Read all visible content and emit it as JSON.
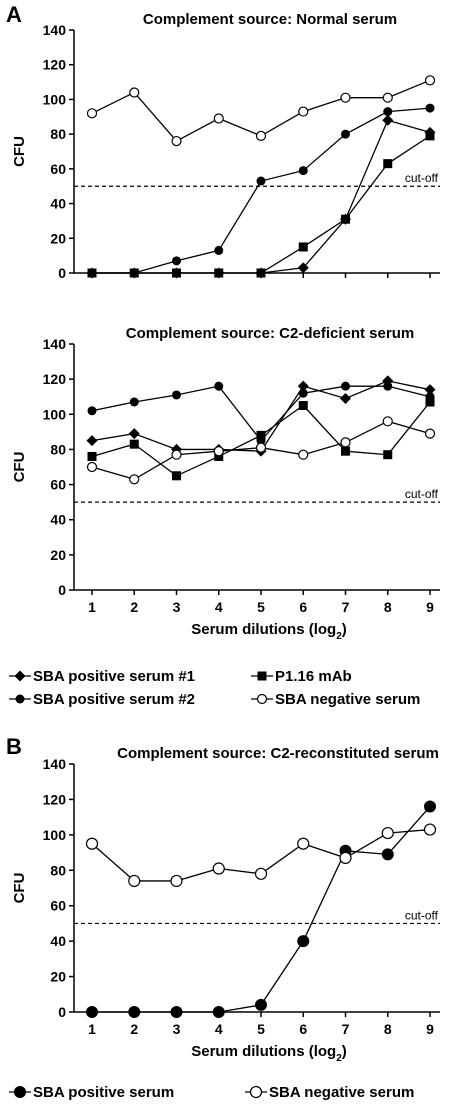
{
  "figure": {
    "panel_labels": [
      "A",
      "B"
    ],
    "legend_A": [
      {
        "label": "SBA positive serum #1",
        "marker": "diamond"
      },
      {
        "label": "P1.16 mAb",
        "marker": "square"
      },
      {
        "label": "SBA positive serum #2",
        "marker": "circle-filled"
      },
      {
        "label": "SBA negative serum",
        "marker": "circle-open"
      }
    ],
    "legend_B": [
      {
        "label": "SBA positive serum",
        "marker": "circle-filled"
      },
      {
        "label": "SBA negative serum",
        "marker": "circle-open"
      }
    ]
  },
  "chart_data": [
    {
      "type": "line",
      "title": "Complement source: Normal serum",
      "ylabel": "CFU",
      "xlabel": "",
      "ylim": [
        0,
        140
      ],
      "yticks": [
        0,
        20,
        40,
        60,
        80,
        100,
        120,
        140
      ],
      "x": [
        1,
        2,
        3,
        4,
        5,
        6,
        7,
        8,
        9
      ],
      "cutoff": {
        "value": 50,
        "label": "cut-off"
      },
      "series": [
        {
          "name": "SBA positive serum #1",
          "marker": "diamond",
          "values": [
            0,
            0,
            0,
            0,
            0,
            3,
            31,
            88,
            81
          ]
        },
        {
          "name": "P1.16 mAb",
          "marker": "square",
          "values": [
            0,
            0,
            0,
            0,
            0,
            15,
            31,
            63,
            79
          ]
        },
        {
          "name": "SBA positive serum #2",
          "marker": "circle-filled",
          "values": [
            0,
            0,
            7,
            13,
            53,
            59,
            80,
            93,
            95
          ]
        },
        {
          "name": "SBA negative serum",
          "marker": "circle-open",
          "values": [
            92,
            104,
            76,
            89,
            79,
            93,
            101,
            101,
            111
          ]
        }
      ]
    },
    {
      "type": "line",
      "title": "Complement source: C2-deficient serum",
      "ylabel": "CFU",
      "xlabel": "Serum dilutions (log",
      "xlabel_sub": "2",
      "xlabel_end": ")",
      "ylim": [
        0,
        140
      ],
      "yticks": [
        0,
        20,
        40,
        60,
        80,
        100,
        120,
        140
      ],
      "x": [
        1,
        2,
        3,
        4,
        5,
        6,
        7,
        8,
        9
      ],
      "cutoff": {
        "value": 50,
        "label": "cut-off"
      },
      "series": [
        {
          "name": "SBA positive serum #1",
          "marker": "diamond",
          "values": [
            85,
            89,
            80,
            80,
            79,
            116,
            109,
            119,
            114
          ]
        },
        {
          "name": "P1.16 mAb",
          "marker": "square",
          "values": [
            76,
            83,
            65,
            76,
            88,
            105,
            79,
            77,
            107
          ]
        },
        {
          "name": "SBA positive serum #2",
          "marker": "circle-filled",
          "values": [
            102,
            107,
            111,
            116,
            85,
            112,
            116,
            116,
            110
          ]
        },
        {
          "name": "SBA negative serum",
          "marker": "circle-open",
          "values": [
            70,
            63,
            77,
            79,
            81,
            77,
            84,
            96,
            89
          ]
        }
      ]
    },
    {
      "type": "line",
      "title": "Complement source: C2-reconstituted serum",
      "ylabel": "CFU",
      "xlabel": "Serum dilutions (log",
      "xlabel_sub": "2",
      "xlabel_end": ")",
      "ylim": [
        0,
        140
      ],
      "yticks": [
        0,
        20,
        40,
        60,
        80,
        100,
        120,
        140
      ],
      "x": [
        1,
        2,
        3,
        4,
        5,
        6,
        7,
        8,
        9
      ],
      "cutoff": {
        "value": 50,
        "label": "cut-off"
      },
      "series": [
        {
          "name": "SBA positive serum",
          "marker": "circle-filled",
          "values": [
            0,
            0,
            0,
            0,
            4,
            40,
            91,
            89,
            116
          ]
        },
        {
          "name": "SBA negative serum",
          "marker": "circle-open",
          "values": [
            95,
            74,
            74,
            81,
            78,
            95,
            87,
            101,
            103
          ]
        }
      ]
    }
  ]
}
